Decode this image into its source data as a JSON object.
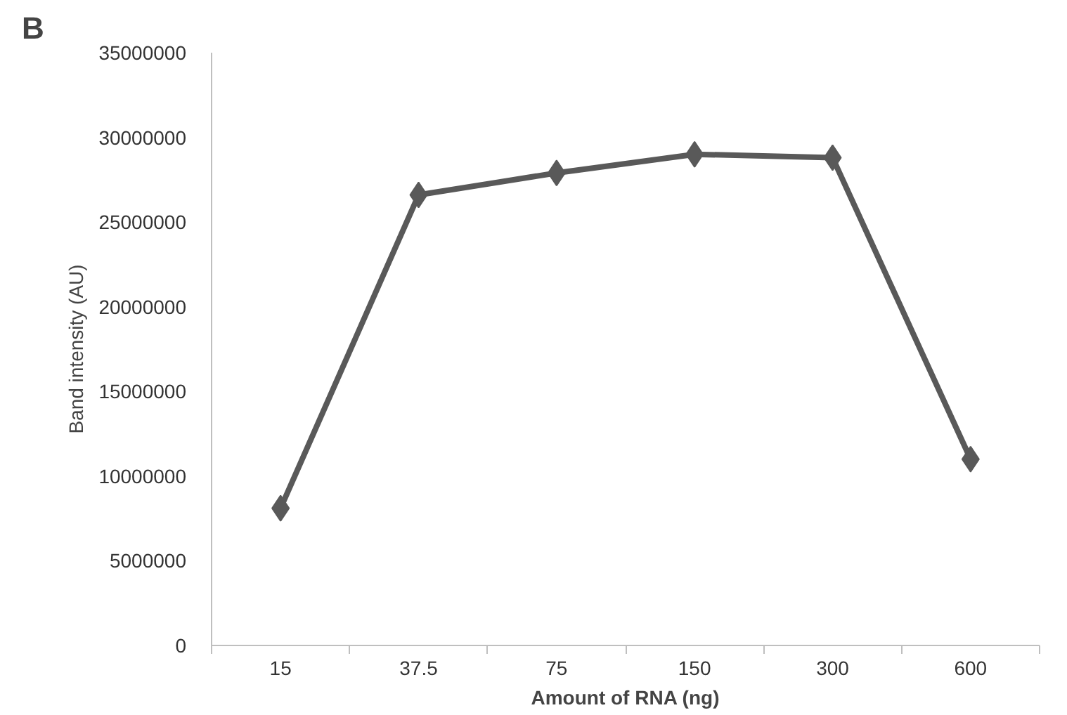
{
  "chart_data": {
    "type": "line",
    "xlabel": "Amount of RNA (ng)",
    "ylabel": "Band intensity (AU)",
    "annotations": [
      "B"
    ],
    "categories": [
      "15",
      "37.5",
      "75",
      "150",
      "300",
      "600"
    ],
    "series": [
      {
        "color": "#595959",
        "values": [
          8100000,
          26600000,
          27900000,
          29000000,
          28800000,
          11000000
        ]
      }
    ],
    "ylim": [
      0,
      35000000
    ],
    "yticks": [
      0,
      5000000,
      10000000,
      15000000,
      20000000,
      25000000,
      30000000,
      35000000
    ],
    "grid": false,
    "marker": "diamond",
    "line_style": "solid"
  }
}
